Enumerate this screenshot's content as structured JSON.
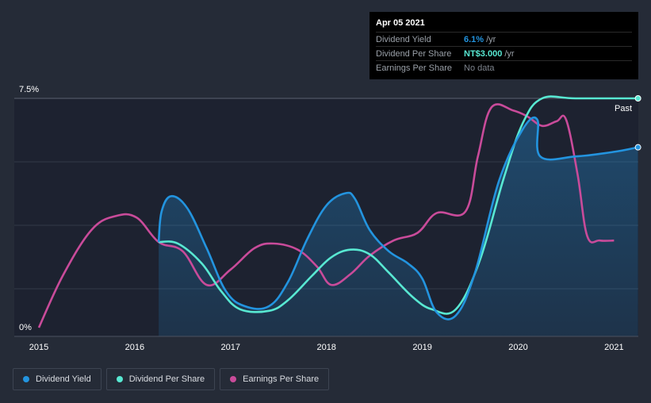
{
  "chart_data": {
    "type": "line",
    "title": "",
    "xlabel": "",
    "ylabel": "",
    "ylim": [
      0,
      7.5
    ],
    "xlim": [
      2014.85,
      2021.25
    ],
    "x_ticks": [
      "2015",
      "2016",
      "2017",
      "2018",
      "2019",
      "2020",
      "2021"
    ],
    "y_tick_labels": {
      "top": "7.5%",
      "bottom": "0%"
    },
    "past_label": "Past",
    "series": [
      {
        "name": "Dividend Yield",
        "color": "#2394df",
        "unit": "%",
        "points": [
          [
            2016.25,
            2.8
          ],
          [
            2016.28,
            3.8
          ],
          [
            2016.38,
            4.3
          ],
          [
            2016.55,
            3.9
          ],
          [
            2016.75,
            2.6
          ],
          [
            2016.95,
            1.2
          ],
          [
            2017.15,
            0.7
          ],
          [
            2017.4,
            0.7
          ],
          [
            2017.6,
            1.5
          ],
          [
            2017.8,
            2.9
          ],
          [
            2018.0,
            4.0
          ],
          [
            2018.2,
            4.4
          ],
          [
            2018.3,
            4.2
          ],
          [
            2018.45,
            3.2
          ],
          [
            2018.65,
            2.5
          ],
          [
            2018.85,
            2.1
          ],
          [
            2019.0,
            1.6
          ],
          [
            2019.15,
            0.5
          ],
          [
            2019.35,
            0.4
          ],
          [
            2019.55,
            1.8
          ],
          [
            2019.8,
            4.8
          ],
          [
            2020.05,
            6.5
          ],
          [
            2020.2,
            6.8
          ],
          [
            2020.23,
            5.6
          ],
          [
            2020.6,
            5.6
          ],
          [
            2021.0,
            5.75
          ],
          [
            2021.25,
            5.9
          ]
        ]
      },
      {
        "name": "Dividend Per Share",
        "color": "#58e8d2",
        "unit": "NT$",
        "points": [
          [
            2016.25,
            2.8
          ],
          [
            2016.45,
            2.75
          ],
          [
            2016.7,
            2.1
          ],
          [
            2016.9,
            1.2
          ],
          [
            2017.1,
            0.6
          ],
          [
            2017.4,
            0.55
          ],
          [
            2017.6,
            0.9
          ],
          [
            2017.85,
            1.7
          ],
          [
            2018.05,
            2.3
          ],
          [
            2018.25,
            2.55
          ],
          [
            2018.45,
            2.4
          ],
          [
            2018.65,
            1.8
          ],
          [
            2018.9,
            1.0
          ],
          [
            2019.1,
            0.6
          ],
          [
            2019.35,
            0.6
          ],
          [
            2019.6,
            2.2
          ],
          [
            2019.85,
            4.9
          ],
          [
            2020.05,
            6.7
          ],
          [
            2020.25,
            7.5
          ],
          [
            2020.6,
            7.5
          ],
          [
            2021.25,
            7.5
          ]
        ]
      },
      {
        "name": "Earnings Per Share",
        "color": "#c94b9a",
        "unit": "",
        "points": [
          [
            2015.0,
            0.0
          ],
          [
            2015.25,
            1.7
          ],
          [
            2015.55,
            3.2
          ],
          [
            2015.8,
            3.65
          ],
          [
            2016.02,
            3.6
          ],
          [
            2016.25,
            2.8
          ],
          [
            2016.5,
            2.5
          ],
          [
            2016.75,
            1.4
          ],
          [
            2017.0,
            1.9
          ],
          [
            2017.25,
            2.6
          ],
          [
            2017.45,
            2.75
          ],
          [
            2017.7,
            2.55
          ],
          [
            2017.9,
            2.0
          ],
          [
            2018.05,
            1.4
          ],
          [
            2018.25,
            1.75
          ],
          [
            2018.45,
            2.35
          ],
          [
            2018.7,
            2.85
          ],
          [
            2018.95,
            3.1
          ],
          [
            2019.15,
            3.75
          ],
          [
            2019.45,
            3.8
          ],
          [
            2019.58,
            5.6
          ],
          [
            2019.72,
            7.2
          ],
          [
            2019.95,
            7.1
          ],
          [
            2020.1,
            6.9
          ],
          [
            2020.25,
            6.6
          ],
          [
            2020.4,
            6.75
          ],
          [
            2020.5,
            6.8
          ],
          [
            2020.62,
            5.0
          ],
          [
            2020.72,
            3.0
          ],
          [
            2020.85,
            2.85
          ],
          [
            2021.0,
            2.85
          ]
        ]
      }
    ]
  },
  "tooltip": {
    "date": "Apr 05 2021",
    "rows": [
      {
        "label": "Dividend Yield",
        "value": "6.1%",
        "unit": "/yr",
        "color": "#2394df"
      },
      {
        "label": "Dividend Per Share",
        "value": "NT$3.000",
        "unit": "/yr",
        "color": "#58e8d2"
      },
      {
        "label": "Earnings Per Share",
        "value": "No data",
        "unit": "",
        "color": "#7d838c"
      }
    ]
  },
  "legend": [
    {
      "label": "Dividend Yield",
      "color": "#2394df"
    },
    {
      "label": "Dividend Per Share",
      "color": "#58e8d2"
    },
    {
      "label": "Earnings Per Share",
      "color": "#c94b9a"
    }
  ]
}
